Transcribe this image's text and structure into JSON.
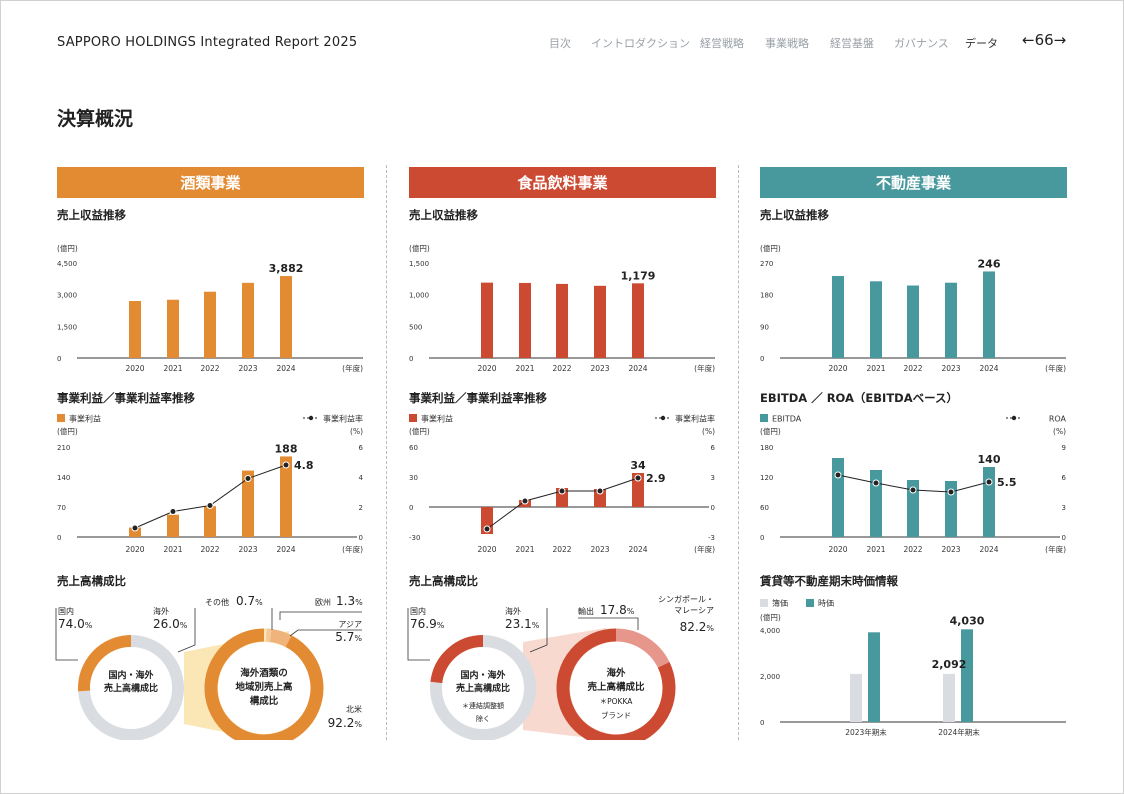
{
  "header": {
    "report_title": "SAPPORO HOLDINGS Integrated Report 2025",
    "nav": [
      "目次",
      "イントロダクション",
      "経営戦略",
      "事業戦略",
      "経営基盤",
      "ガバナンス",
      "データ"
    ],
    "page_prev": "←",
    "page_number": "66",
    "page_next": "→"
  },
  "page_title": "決算概況",
  "colors": {
    "alcohol": "#e38b33",
    "food": "#cc4a32",
    "realestate": "#47999e",
    "gray": "#d9dde2",
    "axis": "#333"
  },
  "unit_oku": "(億円)",
  "unit_pct": "(%)",
  "unit_year": "(年度)",
  "columns": [
    {
      "key": "alcohol",
      "title": "酒類事業",
      "revenue": {
        "heading": "売上収益推移",
        "ticks": [
          "4,500",
          "3,000",
          "1,500",
          "0"
        ],
        "ymax": 4500,
        "categories": [
          "2020",
          "2021",
          "2022",
          "2023",
          "2024"
        ],
        "values": [
          2700,
          2760,
          3140,
          3560,
          3882
        ],
        "last_label": "3,882"
      },
      "profit": {
        "heading": "事業利益／事業利益率推移",
        "bar_legend": "事業利益",
        "line_legend": "事業利益率",
        "left_ticks": [
          "210",
          "140",
          "70",
          "0"
        ],
        "right_ticks": [
          "6",
          "4",
          "2",
          "0"
        ],
        "left_range": [
          0,
          210
        ],
        "right_range": [
          0,
          6
        ],
        "categories": [
          "2020",
          "2021",
          "2022",
          "2023",
          "2024"
        ],
        "bars": [
          22,
          52,
          72,
          155,
          188
        ],
        "line": [
          0.6,
          1.7,
          2.1,
          3.9,
          4.8
        ],
        "bar_label": "188",
        "line_label": "4.8"
      },
      "comp": {
        "heading": "売上高構成比",
        "left": {
          "name1": "国内",
          "value1": "74.0",
          "name2": "海外",
          "value2": "26.0",
          "center": [
            "国内・海外",
            "売上高構成比"
          ],
          "note": [],
          "shares": [
            74.0,
            26.0
          ]
        },
        "right": {
          "center": [
            "海外酒類の",
            "地域別売上高",
            "構成比"
          ],
          "shares": [
            0.7,
            1.3,
            5.7,
            92.2
          ],
          "labels": [
            {
              "name": "その他",
              "value": "0.7"
            },
            {
              "name": "欧州",
              "value": "1.3"
            },
            {
              "name": "アジア",
              "value": "5.7"
            },
            {
              "name": "北米",
              "value": "92.2"
            }
          ]
        },
        "pct": "%"
      }
    },
    {
      "key": "food",
      "title": "食品飲料事業",
      "revenue": {
        "heading": "売上収益推移",
        "ticks": [
          "1,500",
          "1,000",
          "500",
          "0"
        ],
        "ymax": 1500,
        "categories": [
          "2020",
          "2021",
          "2022",
          "2023",
          "2024"
        ],
        "values": [
          1190,
          1185,
          1170,
          1140,
          1179
        ],
        "last_label": "1,179"
      },
      "profit": {
        "heading": "事業利益／事業利益率推移",
        "bar_legend": "事業利益",
        "line_legend": "事業利益率",
        "left_ticks": [
          "60",
          "30",
          "0",
          "-30"
        ],
        "right_ticks": [
          "6",
          "3",
          "0",
          "-3"
        ],
        "left_range": [
          -30,
          60
        ],
        "right_range": [
          -3,
          6
        ],
        "categories": [
          "2020",
          "2021",
          "2022",
          "2023",
          "2024"
        ],
        "bars": [
          -27,
          7,
          19,
          18,
          34
        ],
        "line": [
          -2.2,
          0.6,
          1.6,
          1.6,
          2.9
        ],
        "bar_label": "34",
        "line_label": "2.9"
      },
      "comp": {
        "heading": "売上高構成比",
        "left": {
          "name1": "国内",
          "value1": "76.9",
          "name2": "海外",
          "value2": "23.1",
          "center": [
            "国内・海外",
            "売上高構成比"
          ],
          "note": [
            "＊連結調整額",
            "除く"
          ],
          "shares": [
            76.9,
            23.1
          ]
        },
        "right": {
          "center": [
            "海外",
            "売上高構成比",
            "＊POKKA",
            "ブランド"
          ],
          "shares": [
            17.8,
            82.2
          ],
          "labels": [
            {
              "name": "輸出",
              "value": "17.8"
            },
            {
              "name": "シンガポール・",
              "name2": "マレーシア",
              "value": "82.2"
            }
          ]
        },
        "pct": "%"
      }
    },
    {
      "key": "realestate",
      "title": "不動産事業",
      "revenue": {
        "heading": "売上収益推移",
        "ticks": [
          "270",
          "180",
          "90",
          "0"
        ],
        "ymax": 270,
        "categories": [
          "2020",
          "2021",
          "2022",
          "2023",
          "2024"
        ],
        "values": [
          233,
          218,
          206,
          214,
          246
        ],
        "last_label": "246"
      },
      "profit": {
        "heading": "EBITDA ／ ROA（EBITDAベース）",
        "bar_legend": "EBITDA",
        "line_legend": "ROA",
        "left_ticks": [
          "180",
          "120",
          "60",
          "0"
        ],
        "right_ticks": [
          "9",
          "6",
          "3",
          "0"
        ],
        "left_range": [
          0,
          180
        ],
        "right_range": [
          0,
          9
        ],
        "categories": [
          "2020",
          "2021",
          "2022",
          "2023",
          "2024"
        ],
        "bars": [
          158,
          134,
          114,
          112,
          140
        ],
        "line": [
          6.2,
          5.4,
          4.7,
          4.5,
          5.5
        ],
        "bar_label": "140",
        "line_label": "5.5"
      },
      "fair": {
        "heading": "賃貸等不動産期末時価情報",
        "legend_book": "簿価",
        "legend_fair": "時価",
        "ticks": [
          "4,000",
          "2,000",
          "0"
        ],
        "ymax": 4000,
        "categories": [
          "2023年期末",
          "2024年期末"
        ],
        "book": [
          2090,
          2092
        ],
        "fair": [
          3900,
          4030
        ],
        "book_label": "2,092",
        "fair_label": "4,030"
      }
    }
  ]
}
